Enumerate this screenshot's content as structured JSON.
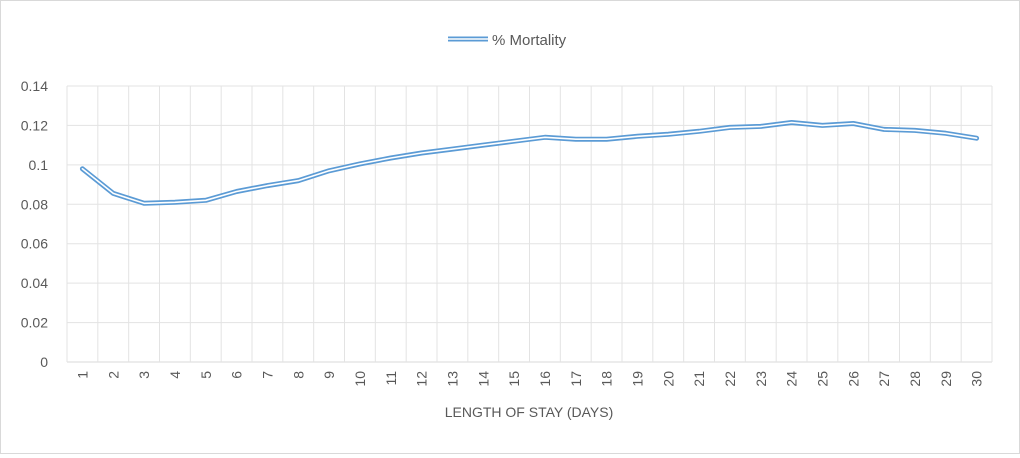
{
  "chart_data": {
    "type": "line",
    "title": "",
    "xlabel": "LENGTH OF STAY (DAYS)",
    "ylabel": "",
    "legend_position": "top-center",
    "grid": true,
    "ylim": [
      0,
      0.14
    ],
    "y_ticks": [
      "0",
      "0.02",
      "0.04",
      "0.06",
      "0.08",
      "0.1",
      "0.12",
      "0.14"
    ],
    "categories": [
      "1",
      "2",
      "3",
      "4",
      "5",
      "6",
      "7",
      "8",
      "9",
      "10",
      "11",
      "12",
      "13",
      "14",
      "15",
      "16",
      "17",
      "18",
      "19",
      "20",
      "21",
      "22",
      "23",
      "24",
      "25",
      "26",
      "27",
      "28",
      "29",
      "30"
    ],
    "series": [
      {
        "name": "% Mortality",
        "color": "#5b9bd5",
        "values": [
          0.098,
          0.0855,
          0.0805,
          0.081,
          0.082,
          0.0865,
          0.0895,
          0.092,
          0.097,
          0.1005,
          0.1035,
          0.106,
          0.108,
          0.11,
          0.112,
          0.114,
          0.113,
          0.113,
          0.1145,
          0.1155,
          0.117,
          0.119,
          0.1195,
          0.1215,
          0.12,
          0.121,
          0.118,
          0.1175,
          0.116,
          0.1135
        ]
      }
    ]
  }
}
